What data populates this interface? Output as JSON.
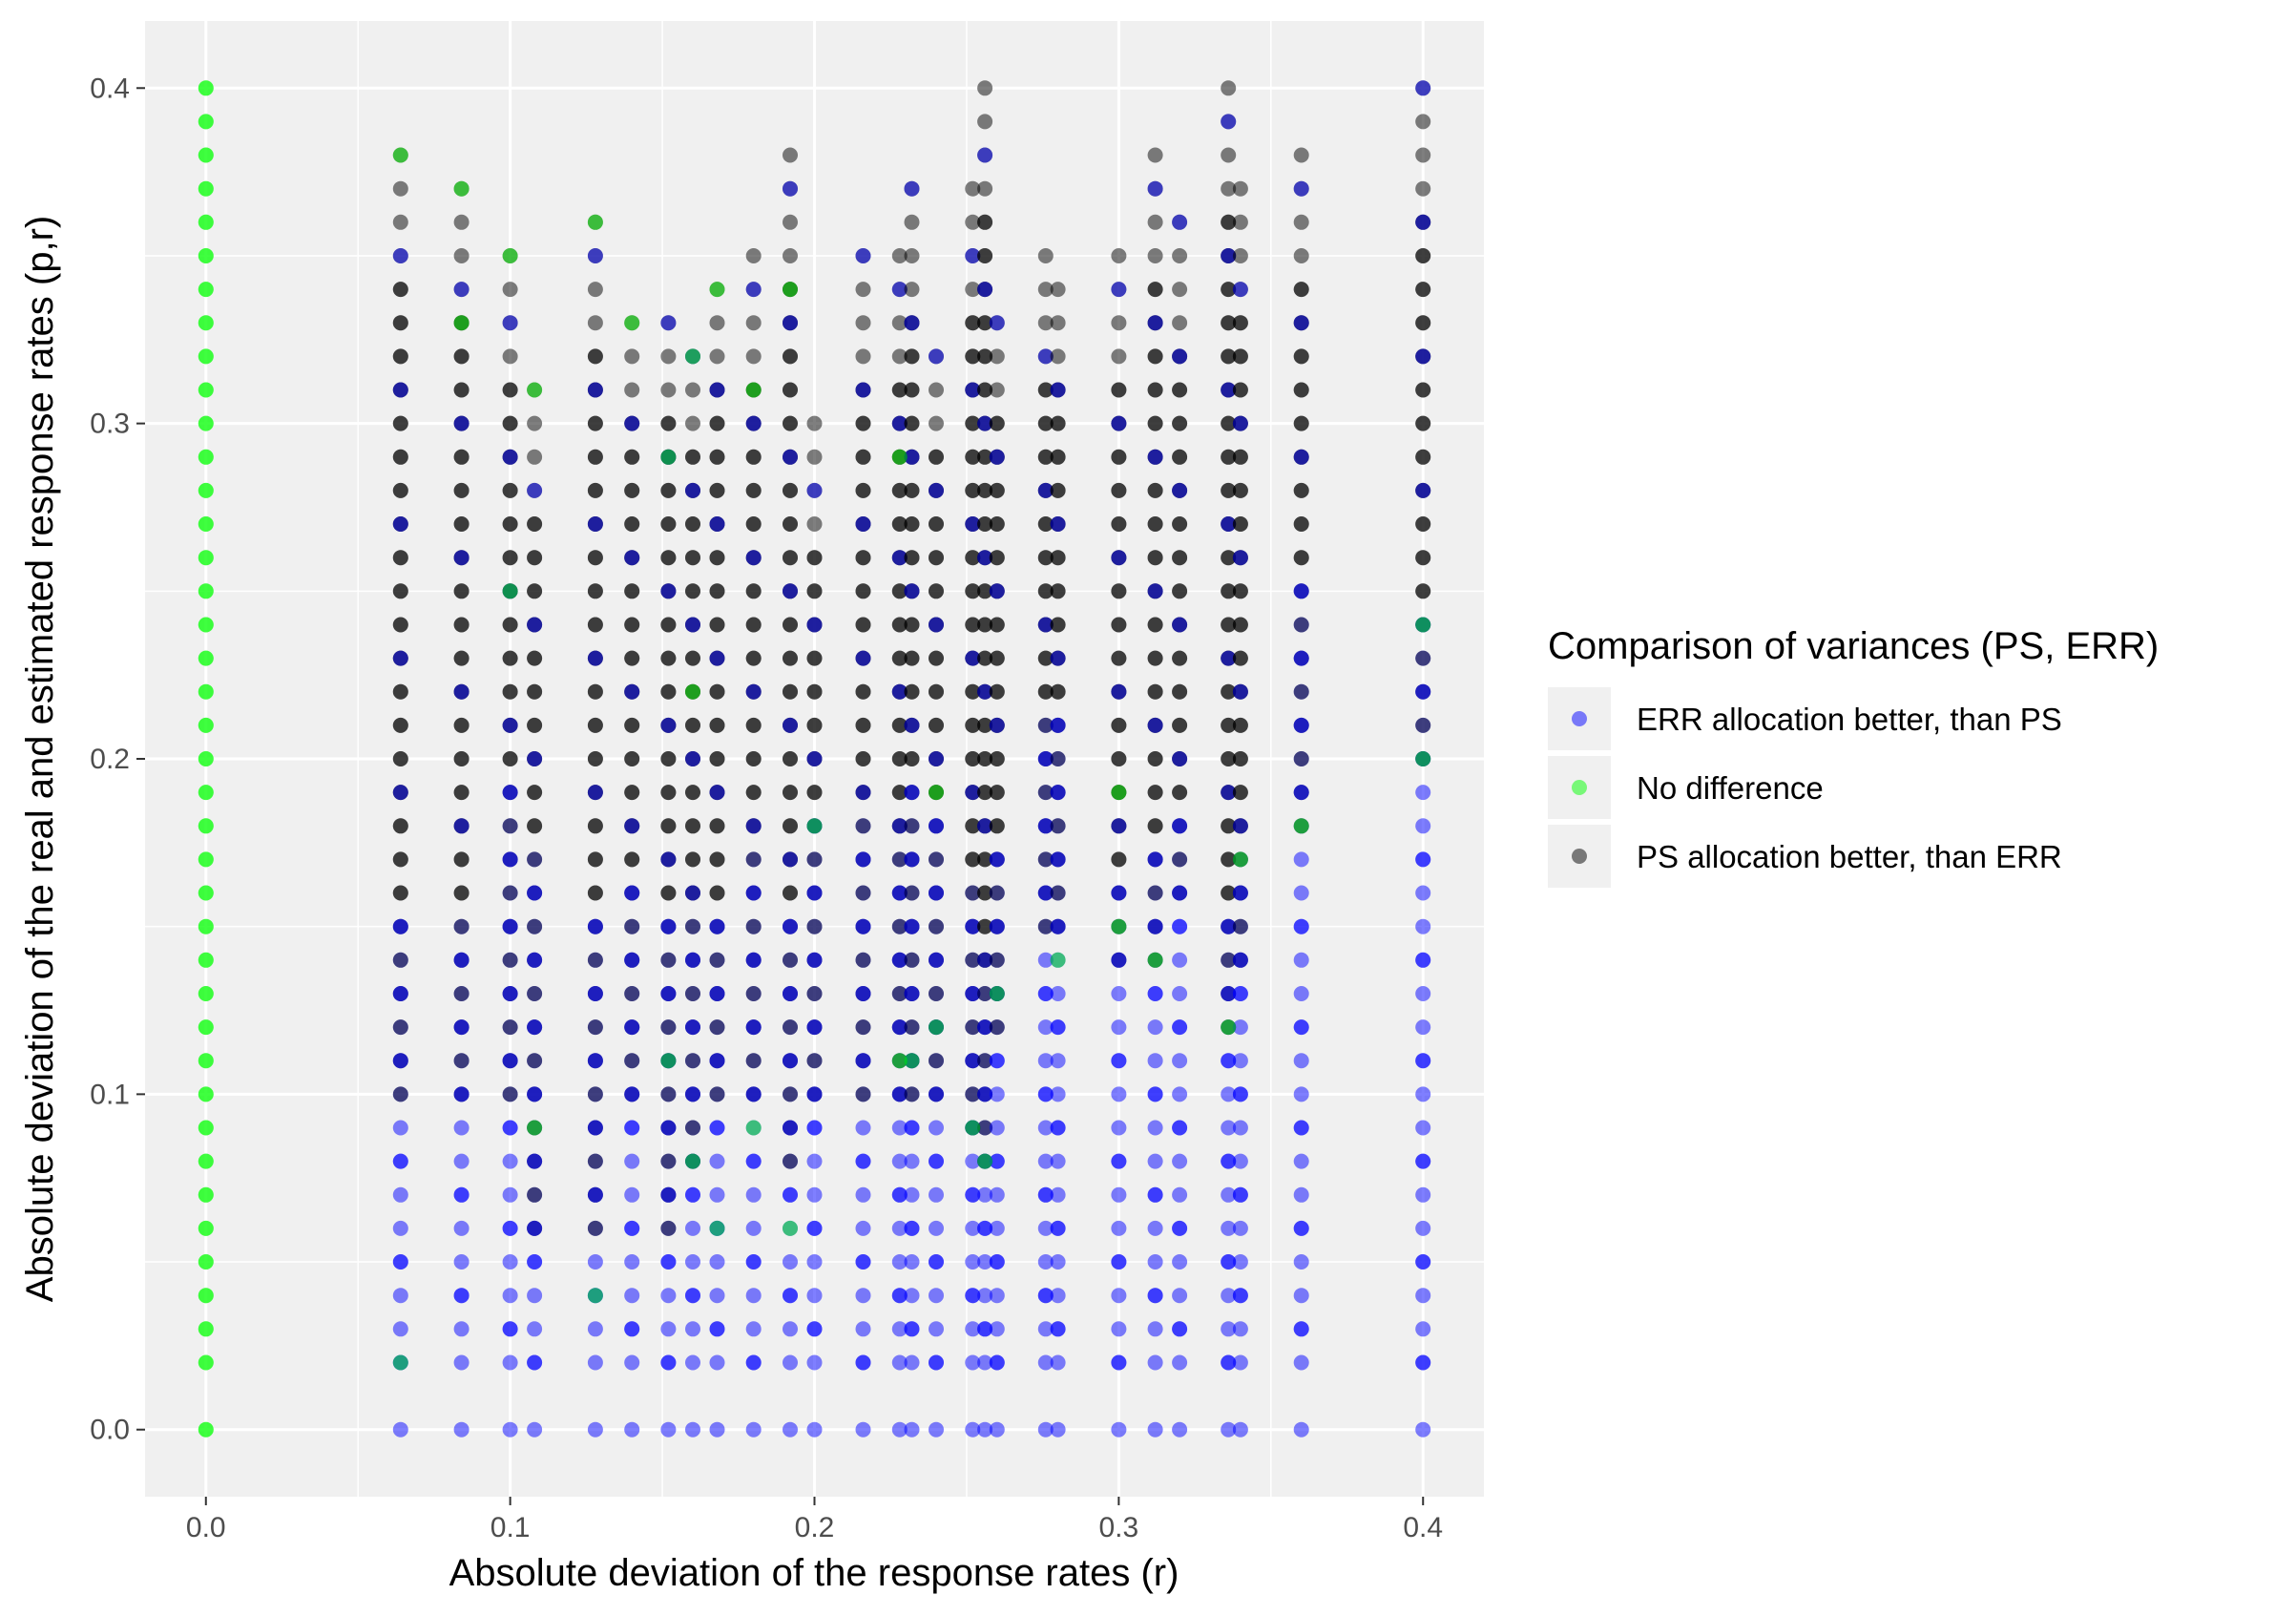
{
  "chart_data": {
    "type": "scatter",
    "xlabel": "Absolute deviation of the response rates (r)",
    "ylabel": "Absolute deviation of the real and estimated response rates (p,r)",
    "xlim": [
      -0.02,
      0.42
    ],
    "ylim": [
      -0.02,
      0.42
    ],
    "x_ticks": [
      "0.0",
      "0.1",
      "0.2",
      "0.3",
      "0.4"
    ],
    "y_ticks": [
      "0.0",
      "0.1",
      "0.2",
      "0.3",
      "0.4"
    ],
    "x_tick_values": [
      0,
      0.1,
      0.2,
      0.3,
      0.4
    ],
    "y_tick_values": [
      0,
      0.1,
      0.2,
      0.3,
      0.4
    ],
    "grid": true,
    "legend_position": "right",
    "legend": {
      "title": "Comparison of variances (PS, ERR)",
      "entries": [
        {
          "key": "ERR",
          "label": "ERR allocation better, than PS",
          "color": "#0000ff"
        },
        {
          "key": "NONE",
          "label": "No difference",
          "color": "#00ff00"
        },
        {
          "key": "PS",
          "label": "PS allocation better, than ERR",
          "color": "#000000"
        }
      ]
    },
    "point_opacity": 0.5,
    "x_columns": [
      0,
      0.064,
      0.084,
      0.1,
      0.108,
      0.128,
      0.14,
      0.152,
      0.16,
      0.168,
      0.18,
      0.192,
      0.2,
      0.216,
      0.228,
      0.232,
      0.24,
      0.252,
      0.256,
      0.26,
      0.276,
      0.28,
      0.3,
      0.312,
      0.32,
      0.336,
      0.34,
      0.36,
      0.4
    ],
    "column_profiles": [
      {
        "x": 0,
        "top": 0.4,
        "gap_top": 0,
        "black_from": 0,
        "mixed_from": 0
      },
      {
        "x": 0.064,
        "top": 0.38,
        "gap_top": 0.02,
        "black_from": 0.16,
        "mixed_from": 0.1
      },
      {
        "x": 0.084,
        "top": 0.37,
        "gap_top": 0.02,
        "black_from": 0.16,
        "mixed_from": 0.1
      },
      {
        "x": 0.1,
        "top": 0.35,
        "gap_top": 0.02,
        "black_from": 0.2,
        "mixed_from": 0.1
      },
      {
        "x": 0.108,
        "top": 0.31,
        "gap_top": 0.02,
        "black_from": 0.18,
        "mixed_from": 0.06
      },
      {
        "x": 0.128,
        "top": 0.36,
        "gap_top": 0.02,
        "black_from": 0.16,
        "mixed_from": 0.06
      },
      {
        "x": 0.14,
        "top": 0.33,
        "gap_top": 0.02,
        "black_from": 0.17,
        "mixed_from": 0.1
      },
      {
        "x": 0.152,
        "top": 0.33,
        "gap_top": 0.02,
        "black_from": 0.16,
        "mixed_from": 0.06
      },
      {
        "x": 0.16,
        "top": 0.32,
        "gap_top": 0.02,
        "black_from": 0.16,
        "mixed_from": 0.08
      },
      {
        "x": 0.168,
        "top": 0.34,
        "gap_top": 0.02,
        "black_from": 0.16,
        "mixed_from": 0.1
      },
      {
        "x": 0.18,
        "top": 0.35,
        "gap_top": 0.02,
        "black_from": 0.18,
        "mixed_from": 0.1
      },
      {
        "x": 0.192,
        "top": 0.38,
        "gap_top": 0.02,
        "black_from": 0.16,
        "mixed_from": 0.08
      },
      {
        "x": 0.2,
        "top": 0.3,
        "gap_top": 0.02,
        "black_from": 0.19,
        "mixed_from": 0.1
      },
      {
        "x": 0.216,
        "top": 0.35,
        "gap_top": 0.02,
        "black_from": 0.19,
        "mixed_from": 0.1
      },
      {
        "x": 0.228,
        "top": 0.35,
        "gap_top": 0.02,
        "black_from": 0.18,
        "mixed_from": 0.1
      },
      {
        "x": 0.232,
        "top": 0.37,
        "gap_top": 0.02,
        "black_from": 0.2,
        "mixed_from": 0.1
      },
      {
        "x": 0.24,
        "top": 0.32,
        "gap_top": 0.02,
        "black_from": 0.19,
        "mixed_from": 0.1
      },
      {
        "x": 0.252,
        "top": 0.37,
        "gap_top": 0.02,
        "black_from": 0.17,
        "mixed_from": 0.09
      },
      {
        "x": 0.256,
        "top": 0.4,
        "gap_top": 0.02,
        "black_from": 0.14,
        "mixed_from": 0.08
      },
      {
        "x": 0.26,
        "top": 0.33,
        "gap_top": 0.02,
        "black_from": 0.18,
        "mixed_from": 0.12
      },
      {
        "x": 0.276,
        "top": 0.35,
        "gap_top": 0.02,
        "black_from": 0.22,
        "mixed_from": 0.15
      },
      {
        "x": 0.28,
        "top": 0.34,
        "gap_top": 0.02,
        "black_from": 0.22,
        "mixed_from": 0.15
      },
      {
        "x": 0.3,
        "top": 0.35,
        "gap_top": 0.02,
        "black_from": 0.17,
        "mixed_from": 0.14
      },
      {
        "x": 0.312,
        "top": 0.38,
        "gap_top": 0.02,
        "black_from": 0.18,
        "mixed_from": 0.14
      },
      {
        "x": 0.32,
        "top": 0.36,
        "gap_top": 0.02,
        "black_from": 0.19,
        "mixed_from": 0.16
      },
      {
        "x": 0.336,
        "top": 0.4,
        "gap_top": 0.02,
        "black_from": 0.16,
        "mixed_from": 0.12
      },
      {
        "x": 0.34,
        "top": 0.37,
        "gap_top": 0.02,
        "black_from": 0.18,
        "mixed_from": 0.14
      },
      {
        "x": 0.36,
        "top": 0.38,
        "gap_top": 0.02,
        "black_from": 0.26,
        "mixed_from": 0.18
      },
      {
        "x": 0.4,
        "top": 0.4,
        "gap_top": 0.02,
        "black_from": 0.25,
        "mixed_from": 0.2
      }
    ],
    "green_points": [
      [
        0.064,
        0.38
      ],
      [
        0.084,
        0.37
      ],
      [
        0.1,
        0.35
      ],
      [
        0.128,
        0.36
      ],
      [
        0.14,
        0.33
      ],
      [
        0.108,
        0.31
      ],
      [
        0.168,
        0.34
      ],
      [
        0.192,
        0.34
      ],
      [
        0.16,
        0.32
      ],
      [
        0.18,
        0.31
      ],
      [
        0.152,
        0.29
      ],
      [
        0.228,
        0.29
      ],
      [
        0.064,
        0.02
      ],
      [
        0.16,
        0.22
      ],
      [
        0.108,
        0.09
      ],
      [
        0.128,
        0.04
      ],
      [
        0.168,
        0.06
      ],
      [
        0.192,
        0.06
      ],
      [
        0.18,
        0.09
      ],
      [
        0.232,
        0.11
      ],
      [
        0.24,
        0.12
      ],
      [
        0.252,
        0.09
      ],
      [
        0.26,
        0.13
      ],
      [
        0.256,
        0.08
      ],
      [
        0.28,
        0.14
      ],
      [
        0.3,
        0.15
      ],
      [
        0.3,
        0.19
      ],
      [
        0.312,
        0.14
      ],
      [
        0.336,
        0.12
      ],
      [
        0.34,
        0.17
      ],
      [
        0.36,
        0.18
      ],
      [
        0.4,
        0.24
      ],
      [
        0.4,
        0.2
      ],
      [
        0.2,
        0.18
      ],
      [
        0.24,
        0.19
      ],
      [
        0.16,
        0.08
      ],
      [
        0.084,
        0.33
      ],
      [
        0.1,
        0.25
      ],
      [
        0.152,
        0.11
      ],
      [
        0.228,
        0.11
      ]
    ]
  }
}
